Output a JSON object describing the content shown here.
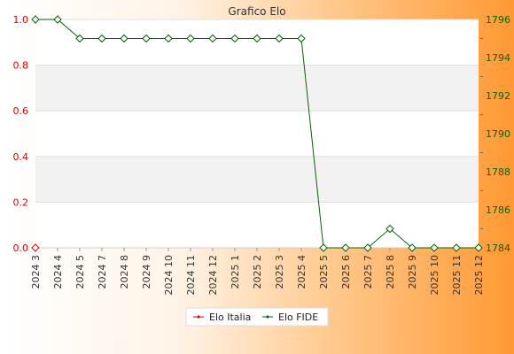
{
  "chart_data": {
    "type": "line",
    "title": "Grafico Elo",
    "categories": [
      "2024 3",
      "2024 4",
      "2024 5",
      "2024 7",
      "2024 8",
      "2024 9",
      "2024 10",
      "2024 11",
      "2024 12",
      "2025 1",
      "2025 2",
      "2025 3",
      "2025 4",
      "2025 5",
      "2025 6",
      "2025 7",
      "2025 8",
      "2025 9",
      "2025 10",
      "2025 11",
      "2025 12"
    ],
    "left_axis": {
      "ylim": [
        0,
        1
      ],
      "ticks": [
        "0.0",
        "0.2",
        "0.4",
        "0.6",
        "0.8",
        "1.0"
      ],
      "color": "#e00000"
    },
    "right_axis": {
      "ylim": [
        1784,
        1796
      ],
      "ticks": [
        "1784",
        "1786",
        "1788",
        "1790",
        "1792",
        "1794",
        "1796"
      ],
      "color": "#006600"
    },
    "series": [
      {
        "name": "Elo Italia",
        "axis": "left",
        "color": "#e00000",
        "values": [
          0,
          null,
          null,
          null,
          null,
          null,
          null,
          null,
          null,
          null,
          null,
          null,
          null,
          null,
          null,
          null,
          null,
          null,
          null,
          null,
          null
        ]
      },
      {
        "name": "Elo FIDE",
        "axis": "right",
        "color": "#006600",
        "values": [
          1796,
          1796,
          1795,
          1795,
          1795,
          1795,
          1795,
          1795,
          1795,
          1795,
          1795,
          1795,
          1795,
          1784,
          1784,
          1784,
          1785,
          1784,
          1784,
          1784,
          1784
        ]
      }
    ],
    "legend_position": "bottom",
    "grid": true
  }
}
